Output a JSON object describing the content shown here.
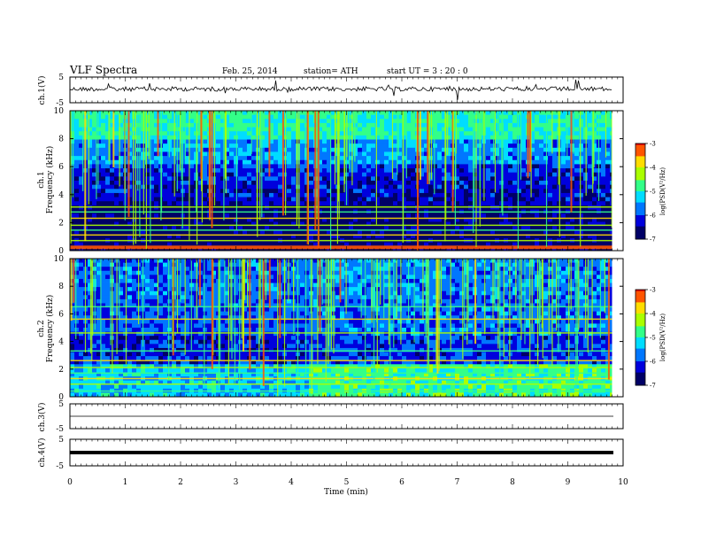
{
  "header": {
    "title": "VLF  Spectra",
    "date": "Feb. 25, 2014",
    "station": "station= ATH",
    "start": "start  UT  =   3  : 20 : 0"
  },
  "colors": {
    "colormap": [
      "#000066",
      "#0000dd",
      "#0077ff",
      "#00ddff",
      "#33ff88",
      "#aaff00",
      "#ffdd00",
      "#ff5500",
      "#dd0000",
      "#ffffff"
    ],
    "trace": "#000000",
    "frame": "#000000",
    "background": "#ffffff"
  },
  "chart_data": [
    {
      "type": "line",
      "ylabel": "ch.1(V)",
      "ylim": [
        -5,
        5
      ],
      "yticks": [
        "5",
        "-5"
      ],
      "description_level": 0.0,
      "series": [
        {
          "values_mean": 0.0
        }
      ]
    },
    {
      "type": "heatmap",
      "ylabel": "Frequency  (kHz)",
      "ylabel_ch": "ch.1",
      "ylim": [
        0,
        10
      ],
      "yticks": [
        "0",
        "2",
        "4",
        "6",
        "8",
        "10"
      ],
      "xlim": [
        0,
        10
      ],
      "data_end_min": 9.8,
      "colorbar": {
        "label": "log(PSD(V²/Hz)",
        "range": [
          -7,
          -3
        ],
        "ticks": [
          "-3",
          "-4",
          "-5",
          "-6",
          "-7"
        ]
      },
      "noise_floor_khz": 3.5,
      "level_boundaries_min": [
        4.3,
        5.6
      ],
      "tone_lines_khz": [
        0.3,
        0.7,
        1.1,
        1.45,
        1.8,
        2.3,
        2.75,
        3.1
      ]
    },
    {
      "type": "heatmap",
      "ylabel": "Frequency  (kHz)",
      "ylabel_ch": "ch.2",
      "ylim": [
        0,
        10
      ],
      "yticks": [
        "0",
        "2",
        "4",
        "6",
        "8",
        "10"
      ],
      "xlim": [
        0,
        10
      ],
      "data_end_min": 9.8,
      "colorbar": {
        "label": "log(PSD(V²/Hz)",
        "range": [
          -7,
          -3
        ],
        "ticks": [
          "-3",
          "-4",
          "-5",
          "-6",
          "-7"
        ]
      },
      "level_boundaries_min": [
        4.3,
        5.6
      ],
      "tone_lines_khz": [
        0.4,
        0.9,
        1.3,
        1.7,
        2.1,
        2.6,
        3.3,
        4.6,
        5.6,
        6.5
      ]
    },
    {
      "type": "line",
      "ylabel": "ch.3(V)",
      "ylim": [
        -5,
        5
      ],
      "yticks": [
        "5",
        "-5"
      ],
      "series": [
        {
          "values_mean": 0.0
        }
      ]
    },
    {
      "type": "line",
      "ylabel": "ch.4(V)",
      "ylim": [
        -5,
        5
      ],
      "yticks": [
        "5",
        "-5"
      ],
      "series": [
        {
          "values_mean": 0.0
        }
      ]
    }
  ],
  "xaxis": {
    "label": "Time  (min)",
    "ticks": [
      "0",
      "1",
      "2",
      "3",
      "4",
      "5",
      "6",
      "7",
      "8",
      "9",
      "10"
    ],
    "xlim": [
      0,
      10
    ]
  }
}
